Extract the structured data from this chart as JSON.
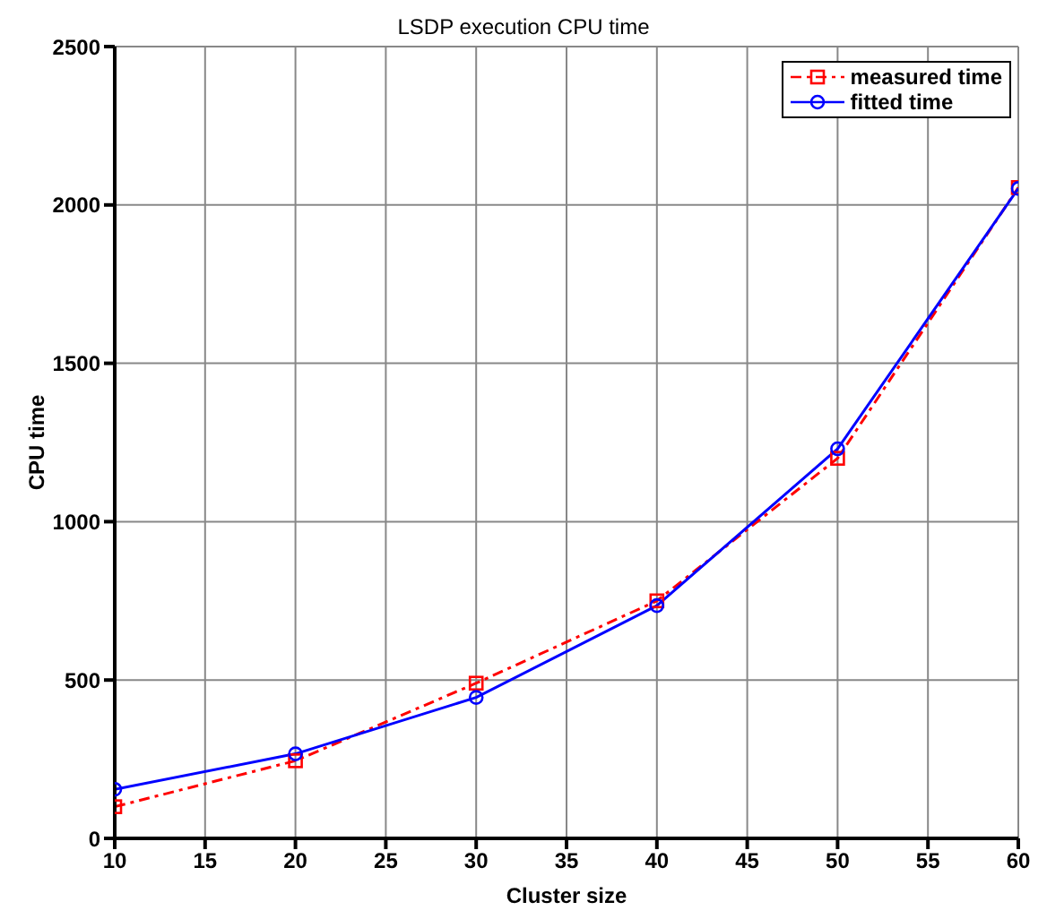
{
  "chart_data": {
    "type": "line",
    "title": "LSDP execution CPU time",
    "xlabel": "Cluster size",
    "ylabel": "CPU time",
    "x": [
      10,
      20,
      30,
      40,
      50,
      60
    ],
    "series": [
      {
        "name": "measured time",
        "color": "#ff0000",
        "values": [
          100,
          245,
          490,
          750,
          1200,
          2055
        ],
        "marker": "square",
        "line_style": "dashed"
      },
      {
        "name": "fitted time",
        "color": "#0000ff",
        "values": [
          155,
          267,
          445,
          735,
          1230,
          2052
        ],
        "marker": "circle",
        "line_style": "solid"
      }
    ],
    "xlim": [
      10,
      60
    ],
    "xticks": [
      10,
      15,
      20,
      25,
      30,
      35,
      40,
      45,
      50,
      55,
      60
    ],
    "ylim": [
      0,
      2500
    ],
    "yticks": [
      0,
      500,
      1000,
      1500,
      2000,
      2500
    ],
    "grid": true,
    "legend": "top right"
  }
}
